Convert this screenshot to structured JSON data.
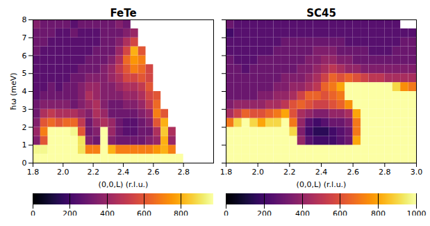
{
  "chart_data": [
    {
      "type": "heatmap",
      "title": "FeTe",
      "x_label": "(0,0,L) (r.l.u.)",
      "y_label": "ħω (meV)",
      "xlim": [
        1.8,
        3.0
      ],
      "ylim": [
        0,
        8
      ],
      "xticks": [
        {
          "value": 1.8,
          "label": "1.8"
        },
        {
          "value": 2.0,
          "label": "2.0"
        },
        {
          "value": 2.2,
          "label": "2.2"
        },
        {
          "value": 2.4,
          "label": "2.4"
        },
        {
          "value": 2.6,
          "label": "2.6"
        },
        {
          "value": 2.8,
          "label": "2.8"
        }
      ],
      "yticks": [
        0,
        1,
        2,
        3,
        4,
        5,
        6,
        7,
        8
      ],
      "x_bins": [
        1.8,
        1.85,
        1.9,
        1.95,
        2.0,
        2.05,
        2.1,
        2.15,
        2.2,
        2.25,
        2.3,
        2.35,
        2.4,
        2.45,
        2.5,
        2.55,
        2.6,
        2.65,
        2.7,
        2.75,
        2.8,
        2.85,
        2.9,
        2.95,
        3.0
      ],
      "y_bins": [
        0,
        0.5,
        1,
        1.5,
        2,
        2.5,
        3,
        3.5,
        4,
        4.5,
        5,
        5.5,
        6,
        6.5,
        7,
        7.5,
        8
      ],
      "z": [
        [
          1000,
          1000,
          1000,
          1000,
          1000,
          1000,
          1000,
          1000,
          1000,
          1000,
          1000,
          1000,
          1000,
          1000,
          1000,
          1000,
          1000,
          1000,
          1000,
          1000,
          null,
          null,
          null,
          null
        ],
        [
          950,
          950,
          1000,
          1000,
          1000,
          1000,
          900,
          700,
          700,
          1000,
          800,
          700,
          700,
          700,
          700,
          700,
          750,
          800,
          700,
          null,
          null,
          null,
          null,
          null
        ],
        [
          350,
          600,
          1000,
          1000,
          1000,
          1000,
          900,
          350,
          300,
          1000,
          350,
          300,
          300,
          300,
          300,
          350,
          400,
          800,
          400,
          null,
          null,
          null,
          null,
          null
        ],
        [
          400,
          700,
          1000,
          1000,
          1000,
          950,
          600,
          300,
          350,
          1000,
          400,
          300,
          250,
          250,
          300,
          300,
          450,
          850,
          450,
          null,
          null,
          null,
          null,
          null
        ],
        [
          350,
          600,
          650,
          600,
          650,
          650,
          500,
          300,
          400,
          450,
          400,
          300,
          250,
          250,
          300,
          350,
          600,
          800,
          null,
          null,
          null,
          null,
          null,
          null
        ],
        [
          300,
          450,
          500,
          450,
          450,
          450,
          400,
          350,
          450,
          400,
          300,
          300,
          300,
          300,
          350,
          400,
          700,
          600,
          null,
          null,
          null,
          null,
          null,
          null
        ],
        [
          300,
          350,
          350,
          350,
          350,
          300,
          350,
          400,
          450,
          350,
          300,
          300,
          350,
          350,
          400,
          500,
          650,
          null,
          null,
          null,
          null,
          null,
          null,
          null
        ],
        [
          250,
          300,
          300,
          300,
          300,
          300,
          350,
          450,
          400,
          350,
          350,
          350,
          400,
          400,
          450,
          550,
          600,
          null,
          null,
          null,
          null,
          null,
          null,
          null
        ],
        [
          250,
          250,
          300,
          250,
          300,
          300,
          350,
          400,
          400,
          350,
          350,
          400,
          450,
          450,
          500,
          600,
          null,
          null,
          null,
          null,
          null,
          null,
          null,
          null
        ],
        [
          250,
          250,
          250,
          250,
          250,
          300,
          300,
          350,
          350,
          350,
          400,
          450,
          550,
          550,
          600,
          550,
          null,
          null,
          null,
          null,
          null,
          null,
          null,
          null
        ],
        [
          250,
          250,
          250,
          250,
          250,
          250,
          300,
          300,
          300,
          350,
          400,
          500,
          600,
          700,
          650,
          550,
          null,
          null,
          null,
          null,
          null,
          null,
          null,
          null
        ],
        [
          250,
          250,
          250,
          250,
          250,
          250,
          250,
          300,
          300,
          300,
          350,
          450,
          650,
          750,
          700,
          null,
          null,
          null,
          null,
          null,
          null,
          null,
          null,
          null
        ],
        [
          300,
          250,
          250,
          250,
          250,
          250,
          250,
          250,
          300,
          300,
          300,
          400,
          550,
          800,
          600,
          null,
          null,
          null,
          null,
          null,
          null,
          null,
          null,
          null
        ],
        [
          300,
          300,
          250,
          250,
          250,
          250,
          250,
          250,
          250,
          300,
          300,
          350,
          450,
          550,
          null,
          null,
          null,
          null,
          null,
          null,
          null,
          null,
          null,
          null
        ],
        [
          300,
          300,
          300,
          250,
          250,
          300,
          250,
          250,
          250,
          300,
          300,
          300,
          350,
          400,
          null,
          null,
          null,
          null,
          null,
          null,
          null,
          null,
          null,
          null
        ],
        [
          350,
          300,
          300,
          300,
          300,
          250,
          300,
          300,
          300,
          300,
          300,
          350,
          300,
          null,
          null,
          null,
          null,
          null,
          null,
          null,
          null,
          null,
          null,
          null
        ]
      ],
      "colorbar": {
        "range": [
          0,
          975
        ],
        "ticks": [
          0,
          200,
          400,
          600,
          800
        ]
      }
    },
    {
      "type": "heatmap",
      "title": "SC45",
      "x_label": "(0,0,L) (r.l.u.)",
      "tick_labels": "x",
      "xlim": [
        1.8,
        3.0
      ],
      "ylim": [
        0,
        8
      ],
      "xticks": [
        {
          "value": 1.8,
          "label": "1.8"
        },
        {
          "value": 2.0,
          "label": "2.0"
        },
        {
          "value": 2.2,
          "label": "2.2"
        },
        {
          "value": 2.4,
          "label": "2.4"
        },
        {
          "value": 2.6,
          "label": "2.6"
        },
        {
          "value": 2.8,
          "label": "2.8"
        },
        {
          "value": 3.0,
          "label": "3.0"
        }
      ],
      "yticks": [
        0,
        1,
        2,
        3,
        4,
        5,
        6,
        7,
        8
      ],
      "x_bins": [
        1.8,
        1.85,
        1.9,
        1.95,
        2.0,
        2.05,
        2.1,
        2.15,
        2.2,
        2.25,
        2.3,
        2.35,
        2.4,
        2.45,
        2.5,
        2.55,
        2.6,
        2.65,
        2.7,
        2.75,
        2.8,
        2.85,
        2.9,
        2.95,
        3.0
      ],
      "y_bins": [
        0,
        0.5,
        1,
        1.5,
        2,
        2.5,
        3,
        3.5,
        4,
        4.5,
        5,
        5.5,
        6,
        6.5,
        7,
        7.5,
        8
      ],
      "z": [
        [
          1000,
          1000,
          1000,
          1000,
          1000,
          1000,
          1000,
          1000,
          1000,
          1000,
          1000,
          1000,
          1000,
          1000,
          1000,
          1000,
          1000,
          1000,
          1000,
          1000,
          1000,
          1000,
          1000,
          1000
        ],
        [
          1000,
          1000,
          1000,
          1000,
          1000,
          1000,
          1000,
          1000,
          1000,
          1000,
          1000,
          1000,
          1000,
          1000,
          1000,
          1000,
          1000,
          1000,
          1000,
          1000,
          1000,
          1000,
          1000,
          1000
        ],
        [
          1000,
          1000,
          1000,
          1000,
          1000,
          1000,
          1000,
          1000,
          1000,
          400,
          250,
          200,
          200,
          200,
          250,
          300,
          800,
          1000,
          1000,
          1000,
          1000,
          1000,
          1000,
          1000
        ],
        [
          1000,
          1000,
          1000,
          1000,
          1000,
          1000,
          1000,
          1000,
          900,
          350,
          200,
          150,
          150,
          200,
          250,
          300,
          700,
          1000,
          1000,
          1000,
          1000,
          1000,
          1000,
          1000
        ],
        [
          700,
          900,
          1000,
          900,
          800,
          900,
          900,
          1000,
          700,
          400,
          250,
          200,
          250,
          300,
          300,
          350,
          700,
          1000,
          1000,
          1000,
          1000,
          1000,
          1000,
          1000
        ],
        [
          450,
          550,
          650,
          600,
          600,
          650,
          700,
          800,
          600,
          450,
          400,
          350,
          350,
          400,
          400,
          450,
          800,
          1000,
          1000,
          1000,
          1000,
          1000,
          1000,
          1000
        ],
        [
          350,
          400,
          400,
          400,
          400,
          450,
          450,
          500,
          600,
          650,
          600,
          550,
          550,
          600,
          650,
          750,
          1000,
          1000,
          1000,
          1000,
          1000,
          1000,
          1000,
          1000
        ],
        [
          300,
          300,
          300,
          300,
          350,
          350,
          400,
          400,
          450,
          550,
          650,
          650,
          600,
          650,
          700,
          1000,
          1000,
          1000,
          1000,
          1000,
          1000,
          1000,
          1000,
          1000
        ],
        [
          300,
          300,
          300,
          300,
          300,
          300,
          350,
          350,
          400,
          400,
          450,
          500,
          650,
          700,
          800,
          1000,
          1000,
          1000,
          1000,
          1000,
          1000,
          900,
          750,
          700
        ],
        [
          300,
          300,
          300,
          300,
          300,
          300,
          300,
          350,
          350,
          350,
          400,
          450,
          550,
          650,
          600,
          650,
          600,
          550,
          500,
          500,
          450,
          450,
          450,
          450
        ],
        [
          300,
          300,
          250,
          300,
          300,
          300,
          300,
          300,
          300,
          350,
          350,
          400,
          450,
          500,
          450,
          400,
          400,
          350,
          350,
          350,
          350,
          350,
          350,
          350
        ],
        [
          300,
          250,
          250,
          250,
          300,
          300,
          300,
          300,
          300,
          300,
          350,
          350,
          400,
          400,
          350,
          350,
          300,
          300,
          300,
          300,
          300,
          300,
          300,
          300
        ],
        [
          250,
          250,
          250,
          250,
          250,
          250,
          300,
          300,
          300,
          300,
          300,
          350,
          350,
          350,
          300,
          300,
          300,
          300,
          250,
          250,
          250,
          300,
          300,
          300
        ],
        [
          250,
          250,
          250,
          250,
          250,
          250,
          250,
          300,
          300,
          300,
          300,
          300,
          300,
          300,
          300,
          250,
          250,
          250,
          250,
          250,
          250,
          250,
          300,
          300
        ],
        [
          200,
          250,
          250,
          250,
          250,
          250,
          250,
          250,
          250,
          250,
          250,
          250,
          250,
          250,
          250,
          250,
          250,
          250,
          250,
          250,
          250,
          250,
          250,
          250
        ],
        [
          300,
          250,
          250,
          250,
          250,
          250,
          250,
          250,
          250,
          250,
          250,
          250,
          250,
          250,
          250,
          250,
          250,
          250,
          250,
          250,
          250,
          250,
          null,
          null
        ]
      ],
      "colorbar": {
        "range": [
          0,
          1000
        ],
        "ticks": [
          0,
          200,
          400,
          600,
          800,
          1000
        ]
      }
    }
  ]
}
